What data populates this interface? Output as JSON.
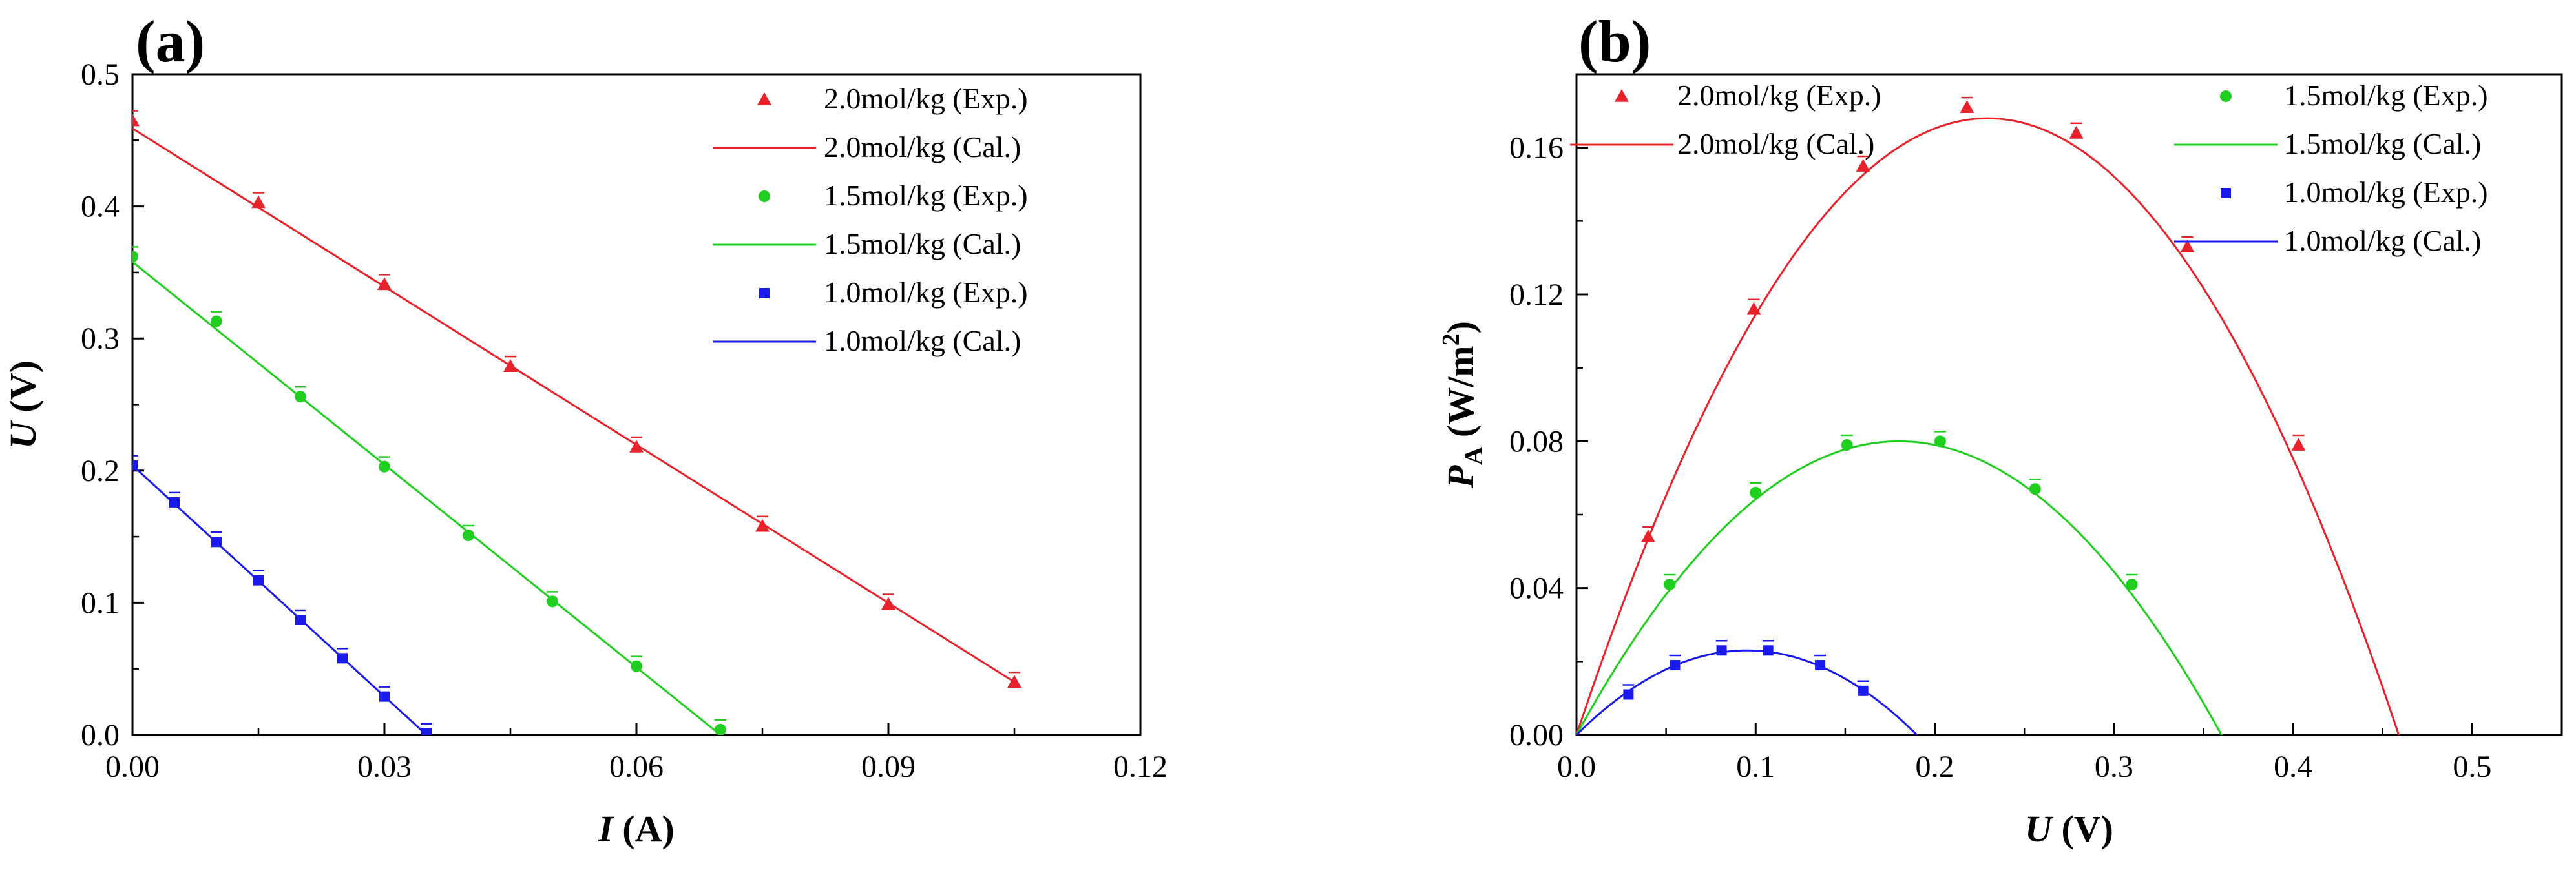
{
  "colors": {
    "red": "#e8222a",
    "green": "#1fcf1f",
    "blue": "#1a1aee",
    "axis": "#000000"
  },
  "chart_data": [
    {
      "type": "scatter",
      "panel_label": "(a)",
      "title": "",
      "xlabel_var": "I",
      "xlabel_unit": " (A)",
      "ylabel_var": "U",
      "ylabel_unit": " (V)",
      "xlim": [
        0,
        0.12
      ],
      "ylim": [
        0,
        0.5
      ],
      "xticks": [
        0,
        0.03,
        0.06,
        0.09,
        0.12
      ],
      "xtick_labels": [
        "0.00",
        "0.03",
        "0.06",
        "0.09",
        "0.12"
      ],
      "yticks": [
        0,
        0.1,
        0.2,
        0.3,
        0.4,
        0.5
      ],
      "ytick_labels": [
        "0.0",
        "0.1",
        "0.2",
        "0.3",
        "0.4",
        "0.5"
      ],
      "legend_position": "top-right",
      "series": [
        {
          "name": "2.0mol/kg (Exp.)",
          "kind": "marker",
          "marker": "triangle",
          "color": "red",
          "x": [
            0,
            0.015,
            0.03,
            0.045,
            0.06,
            0.075,
            0.09,
            0.105
          ],
          "y": [
            0.465,
            0.403,
            0.341,
            0.279,
            0.218,
            0.158,
            0.099,
            0.04
          ]
        },
        {
          "name": "2.0mol/kg (Cal.)",
          "kind": "line",
          "color": "red",
          "x": [
            0,
            0.105
          ],
          "y": [
            0.459,
            0.04
          ]
        },
        {
          "name": "1.5mol/kg (Exp.)",
          "kind": "marker",
          "marker": "circle",
          "color": "green",
          "x": [
            0,
            0.01,
            0.02,
            0.03,
            0.04,
            0.05,
            0.06,
            0.07
          ],
          "y": [
            0.362,
            0.313,
            0.256,
            0.203,
            0.151,
            0.101,
            0.052,
            0.004
          ]
        },
        {
          "name": "1.5mol/kg (Cal.)",
          "kind": "line",
          "color": "green",
          "x": [
            0,
            0.07
          ],
          "y": [
            0.358,
            0.0
          ]
        },
        {
          "name": "1.0mol/kg (Exp.)",
          "kind": "marker",
          "marker": "square",
          "color": "blue",
          "x": [
            0,
            0.005,
            0.01,
            0.015,
            0.02,
            0.025,
            0.03,
            0.035
          ],
          "y": [
            0.204,
            0.176,
            0.146,
            0.117,
            0.087,
            0.058,
            0.029,
            0.001
          ]
        },
        {
          "name": "1.0mol/kg (Cal.)",
          "kind": "line",
          "color": "blue",
          "x": [
            0,
            0.035
          ],
          "y": [
            0.204,
            0.0
          ]
        }
      ]
    },
    {
      "type": "scatter",
      "panel_label": "(b)",
      "title": "",
      "xlabel_var": "U",
      "xlabel_unit": " (V)",
      "ylabel_var": "P",
      "ylabel_sub": "A",
      "ylabel_unit": " (W/m",
      "ylabel_sup": "2",
      "ylabel_close": ")",
      "xlim": [
        0,
        0.55
      ],
      "ylim": [
        0,
        0.18
      ],
      "xticks": [
        0,
        0.1,
        0.2,
        0.3,
        0.4,
        0.5
      ],
      "xtick_labels": [
        "0.0",
        "0.1",
        "0.2",
        "0.3",
        "0.4",
        "0.5"
      ],
      "yticks": [
        0,
        0.04,
        0.08,
        0.12,
        0.16
      ],
      "ytick_labels": [
        "0.00",
        "0.04",
        "0.08",
        "0.12",
        "0.16"
      ],
      "legend_position": "top",
      "series": [
        {
          "name": "2.0mol/kg (Exp.)",
          "kind": "marker",
          "marker": "triangle",
          "color": "red",
          "x": [
            0.04,
            0.099,
            0.16,
            0.218,
            0.279,
            0.341,
            0.403
          ],
          "y": [
            0.054,
            0.116,
            0.155,
            0.171,
            0.164,
            0.133,
            0.079
          ]
        },
        {
          "name": "2.0mol/kg (Cal.)",
          "kind": "curve",
          "color": "red",
          "v0": 0.459,
          "peak": 0.168,
          "xstart": 0,
          "xend": 0.466
        },
        {
          "name": "1.5mol/kg (Exp.)",
          "kind": "marker",
          "marker": "circle",
          "color": "green",
          "x": [
            0.052,
            0.1,
            0.151,
            0.203,
            0.256,
            0.31
          ],
          "y": [
            0.041,
            0.066,
            0.079,
            0.08,
            0.067,
            0.041
          ]
        },
        {
          "name": "1.5mol/kg (Cal.)",
          "kind": "curve",
          "color": "green",
          "v0": 0.36,
          "peak": 0.08,
          "xstart": 0,
          "xend": 0.366
        },
        {
          "name": "1.0mol/kg (Exp.)",
          "kind": "marker",
          "marker": "square",
          "color": "blue",
          "x": [
            0.029,
            0.055,
            0.081,
            0.107,
            0.136,
            0.16
          ],
          "y": [
            0.011,
            0.019,
            0.023,
            0.023,
            0.019,
            0.012
          ]
        },
        {
          "name": "1.0mol/kg (Cal.)",
          "kind": "curve",
          "color": "blue",
          "v0": 0.19,
          "peak": 0.023,
          "xstart": 0,
          "xend": 0.19
        }
      ]
    }
  ]
}
